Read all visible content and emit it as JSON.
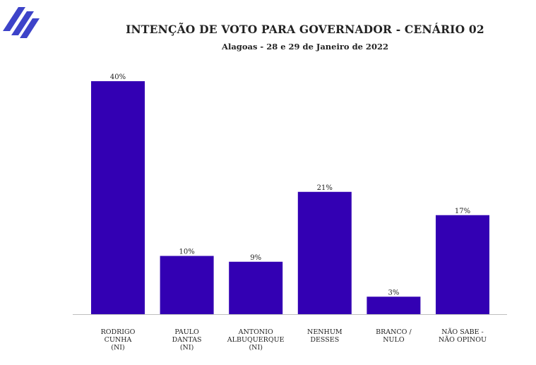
{
  "colors": {
    "bar": "#3300b3",
    "logo": "#3d43c9",
    "axis": "#bfbfbf"
  },
  "logo_icon": "stacked-chevrons-logo-icon",
  "chart_data": {
    "type": "bar",
    "title": "INTENÇÃO DE VOTO PARA GOVERNADOR - CENÁRIO 02",
    "subtitle": "Alagoas - 28 e 29 de Janeiro de 2022",
    "categories": [
      [
        "RODRIGO",
        "CUNHA",
        "(NI)"
      ],
      [
        "PAULO",
        "DANTAS",
        "(NI)"
      ],
      [
        "ANTONIO",
        "ALBUQUERQUE",
        "(NI)"
      ],
      [
        "NENHUM",
        "DESSES"
      ],
      [
        "BRANCO /",
        "NULO"
      ],
      [
        "NÃO SABE  -",
        "NÃO OPINOU"
      ]
    ],
    "values": [
      40,
      10,
      9,
      21,
      3,
      17
    ],
    "value_labels": [
      "40%",
      "10%",
      "9%",
      "21%",
      "3%",
      "17%"
    ],
    "unit": "%",
    "ylim": [
      0,
      40
    ],
    "grid": false,
    "legend": "none"
  }
}
